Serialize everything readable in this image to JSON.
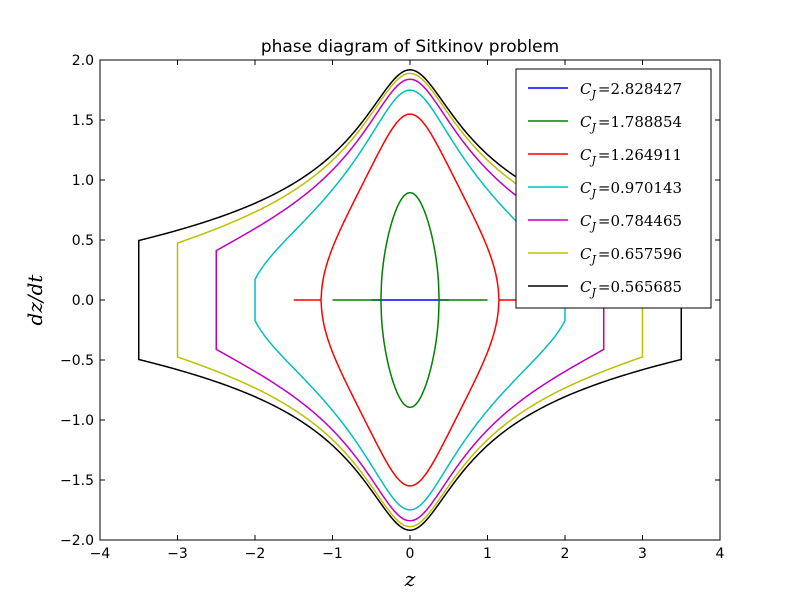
{
  "chart_data": {
    "type": "line",
    "title": "phase diagram of Sitkinov problem",
    "xlabel": "z",
    "ylabel": "dz/dt",
    "xlim": [
      -4,
      4
    ],
    "ylim": [
      -2.0,
      2.0
    ],
    "xticks": [
      -4,
      -3,
      -2,
      -1,
      0,
      1,
      2,
      3,
      4
    ],
    "xtick_labels": [
      "−4",
      "−3",
      "−2",
      "−1",
      "0",
      "1",
      "2",
      "3",
      "4"
    ],
    "yticks": [
      -2.0,
      -1.5,
      -1.0,
      -0.5,
      0.0,
      0.5,
      1.0,
      1.5,
      2.0
    ],
    "ytick_labels": [
      "−2.0",
      "−1.5",
      "−1.0",
      "−0.5",
      "0.0",
      "0.5",
      "1.0",
      "1.5",
      "2.0"
    ],
    "grid": false,
    "legend_position": "top-right",
    "legend_var": "C",
    "legend_sub": "J",
    "series": [
      {
        "name": "C_J=2.828427",
        "label_value": "2.828427",
        "CJ": 2.828427,
        "color": "#0000ff",
        "z_max": 0.5
      },
      {
        "name": "C_J=1.788854",
        "label_value": "1.788854",
        "CJ": 1.788854,
        "color": "#008000",
        "z_max": 1.0
      },
      {
        "name": "C_J=1.264911",
        "label_value": "1.264911",
        "CJ": 1.264911,
        "color": "#ff0000",
        "z_max": 1.5
      },
      {
        "name": "C_J=0.970143",
        "label_value": "0.970143",
        "CJ": 0.970143,
        "color": "#00bfbf",
        "z_max": 2.0
      },
      {
        "name": "C_J=0.784465",
        "label_value": "0.784465",
        "CJ": 0.784465,
        "color": "#bf00bf",
        "z_max": 2.5
      },
      {
        "name": "C_J=0.657596",
        "label_value": "0.657596",
        "CJ": 0.657596,
        "color": "#bfbf00",
        "z_max": 3.0
      },
      {
        "name": "C_J=0.565685",
        "label_value": "0.565685",
        "CJ": 0.565685,
        "color": "#000000",
        "z_max": 3.5
      }
    ]
  }
}
